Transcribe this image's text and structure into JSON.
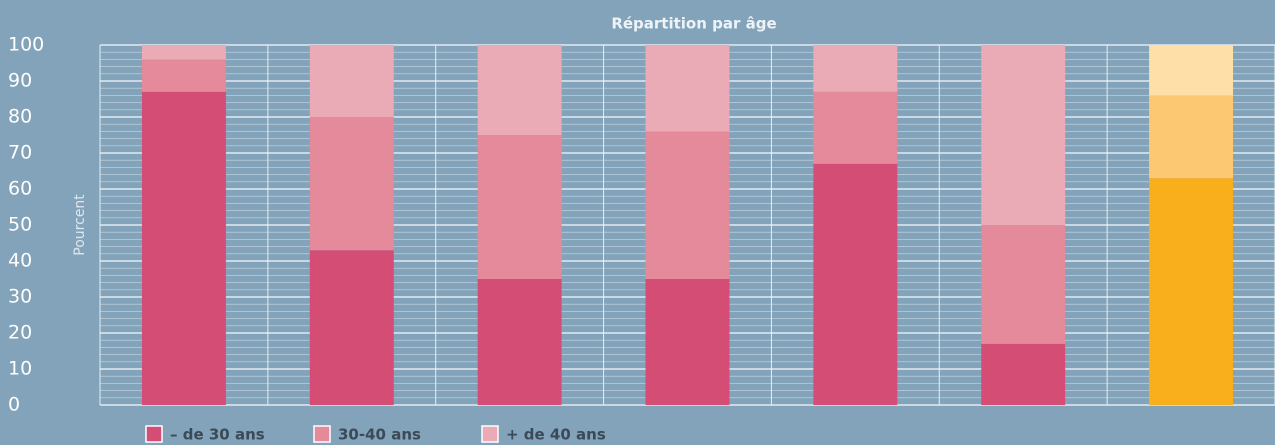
{
  "chart_data": {
    "type": "stacked_bar",
    "title": "Répartition par âge",
    "y_label": "Pourcent",
    "categories": [
      null,
      null,
      null,
      null,
      null,
      null,
      null
    ],
    "series": [
      {
        "name": "– de 30 ans",
        "color": "#d44d75",
        "highlight_color": "#f9ae1b",
        "values": [
          87,
          43,
          35,
          35,
          67,
          17,
          63
        ]
      },
      {
        "name": "30-40 ans",
        "color": "#e48a9a",
        "highlight_color": "#fdc872",
        "values": [
          9,
          37,
          40,
          41,
          20,
          33,
          23
        ]
      },
      {
        "name": "+ de 40 ans",
        "color": "#eaabb6",
        "highlight_color": "#fedfa8",
        "values": [
          4,
          20,
          25,
          24,
          13,
          50,
          14
        ]
      }
    ],
    "highlight_index": 6,
    "ylim": [
      0,
      100
    ],
    "yticks": [
      0,
      10,
      20,
      30,
      40,
      50,
      60,
      70,
      80,
      90,
      100
    ],
    "minor_yticks": [
      2,
      4,
      6,
      8,
      12,
      14,
      16,
      18,
      22,
      24,
      26,
      28,
      32,
      34,
      36,
      38,
      42,
      44,
      46,
      48,
      52,
      54,
      56,
      58,
      62,
      64,
      66,
      68,
      72,
      74,
      76,
      78,
      82,
      84,
      86,
      88,
      92,
      94,
      96,
      98
    ],
    "grid": true,
    "legend": "bottom-left"
  }
}
